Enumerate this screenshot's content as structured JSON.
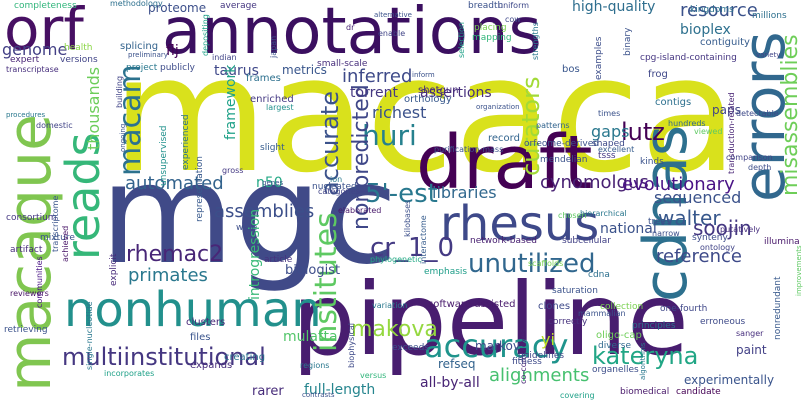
{
  "word_cloud": {
    "words": [
      {
        "text": "macaca",
        "color": "#d9e11c"
      },
      {
        "text": "mgc",
        "color": "#404a88"
      },
      {
        "text": "pipeline",
        "color": "#481d6f"
      },
      {
        "text": "annotations",
        "color": "#3b0f60"
      },
      {
        "text": "macaque",
        "color": "#80c650"
      },
      {
        "text": "draft",
        "color": "#440154"
      },
      {
        "text": "cdnas",
        "color": "#2d708e"
      },
      {
        "text": "errors",
        "color": "#31688e"
      },
      {
        "text": "nonhuman",
        "color": "#22908c"
      },
      {
        "text": "orf",
        "color": "#471063"
      },
      {
        "text": "rhesus",
        "color": "#3e4989"
      },
      {
        "text": "reads",
        "color": "#35b779"
      },
      {
        "text": "accuracy",
        "color": "#1f948c"
      },
      {
        "text": "institutes",
        "color": "#5ec962"
      },
      {
        "text": "multiinstitutional",
        "color": "#453781"
      },
      {
        "text": "kateryna",
        "color": "#21a685"
      },
      {
        "text": "macam",
        "color": "#2c728e"
      },
      {
        "text": "huri",
        "color": "#26818e"
      },
      {
        "text": "5'-est",
        "color": "#29788e"
      },
      {
        "text": "cr_1_0",
        "color": "#443a83"
      },
      {
        "text": "nonpredicted",
        "color": "#3f4788"
      },
      {
        "text": "curators",
        "color": "#a2da37"
      },
      {
        "text": "misassemblies",
        "color": "#6ece58"
      },
      {
        "text": "unutilized",
        "color": "#31678e"
      },
      {
        "text": "accurate",
        "color": "#3b528b"
      },
      {
        "text": "makova",
        "color": "#95d840"
      },
      {
        "text": "walter",
        "color": "#38588c"
      },
      {
        "text": "soojin",
        "color": "#453882"
      },
      {
        "text": "rhemac2",
        "color": "#482677"
      },
      {
        "text": "lutz",
        "color": "#440154"
      },
      {
        "text": "inferred",
        "color": "#3e4a89"
      },
      {
        "text": "resource",
        "color": "#3b528b"
      },
      {
        "text": "cynomolgus",
        "color": "#482173"
      },
      {
        "text": "evolutionary",
        "color": "#4a1486"
      },
      {
        "text": "primates",
        "color": "#2a788e"
      },
      {
        "text": "genome",
        "color": "#423f85"
      },
      {
        "text": "assemblies",
        "color": "#3c4f8a"
      },
      {
        "text": "libraries",
        "color": "#31688e"
      },
      {
        "text": "alignments",
        "color": "#46c06f"
      },
      {
        "text": "reference",
        "color": "#3e4a89"
      },
      {
        "text": "automated",
        "color": "#33638d"
      },
      {
        "text": "thousands",
        "color": "#6ccd5a"
      },
      {
        "text": "taurus",
        "color": "#3f4889"
      },
      {
        "text": "high-quality",
        "color": "#2e6e8e"
      },
      {
        "text": "bioplex",
        "color": "#2d708e"
      },
      {
        "text": "paps",
        "color": "#414487"
      },
      {
        "text": "gaps",
        "color": "#2a788e"
      },
      {
        "text": "richest",
        "color": "#3b528b"
      },
      {
        "text": "sequenced",
        "color": "#3b528b"
      },
      {
        "text": "torrent",
        "color": "#453882"
      },
      {
        "text": "assertions",
        "color": "#472f7d"
      },
      {
        "text": "framework",
        "color": "#1fa188"
      },
      {
        "text": "biologist",
        "color": "#3d4d8a"
      },
      {
        "text": "introgression",
        "color": "#38b977"
      },
      {
        "text": "all-by-all",
        "color": "#482475"
      },
      {
        "text": "full-length",
        "color": "#25858e"
      },
      {
        "text": "mulatta",
        "color": "#52c569"
      },
      {
        "text": "refseq",
        "color": "#33638d"
      },
      {
        "text": "yi",
        "color": "#bddf26"
      },
      {
        "text": "national",
        "color": "#3b528b"
      },
      {
        "text": "markov",
        "color": "#3e4a89"
      },
      {
        "text": "paint",
        "color": "#424086"
      },
      {
        "text": "experimentally",
        "color": "#3a548c"
      },
      {
        "text": "rarer",
        "color": "#472c7a"
      },
      {
        "text": "flj",
        "color": "#440154"
      },
      {
        "text": "proteome",
        "color": "#3c4f8a"
      },
      {
        "text": "metrics",
        "color": "#39568c"
      },
      {
        "text": "n50",
        "color": "#22a884"
      },
      {
        "text": "splicing",
        "color": "#33638d"
      },
      {
        "text": "creating",
        "color": "#2c738e"
      },
      {
        "text": "clusters",
        "color": "#482878"
      },
      {
        "text": "files",
        "color": "#3a548c"
      },
      {
        "text": "expands",
        "color": "#472d7b"
      },
      {
        "text": "enriched",
        "color": "#443983"
      },
      {
        "text": "frames",
        "color": "#2d708e"
      },
      {
        "text": "shotgun",
        "color": "#472a7a"
      },
      {
        "text": "orthology",
        "color": "#38598c"
      },
      {
        "text": "record",
        "color": "#32648e"
      },
      {
        "text": "contigs",
        "color": "#2d708e"
      },
      {
        "text": "bos",
        "color": "#39568c"
      },
      {
        "text": "frog",
        "color": "#3f4788"
      },
      {
        "text": "contiguity",
        "color": "#365c8d"
      },
      {
        "text": "kingdoms",
        "color": "#2c728e"
      },
      {
        "text": "millions",
        "color": "#2d708e"
      },
      {
        "text": "binary",
        "color": "#3b528b"
      },
      {
        "text": "examples",
        "color": "#3d4e8a"
      },
      {
        "text": "cpg-island-containing",
        "color": "#453581"
      },
      {
        "text": "small-scale",
        "color": "#472e7c"
      },
      {
        "text": "mapping",
        "color": "#32b67a"
      },
      {
        "text": "placing",
        "color": "#7ad151"
      },
      {
        "text": "breadth",
        "color": "#3b528b"
      },
      {
        "text": "uniform",
        "color": "#3e4989"
      },
      {
        "text": "cow",
        "color": "#3f4889"
      },
      {
        "text": "methodology",
        "color": "#2d708e"
      },
      {
        "text": "completeness",
        "color": "#31b57b"
      },
      {
        "text": "average",
        "color": "#453781"
      },
      {
        "text": "expert",
        "color": "#482475"
      },
      {
        "text": "health",
        "color": "#8bd646"
      },
      {
        "text": "versions",
        "color": "#414487"
      },
      {
        "text": "transcriptase",
        "color": "#472f7d"
      },
      {
        "text": "project",
        "color": "#2a788e"
      },
      {
        "text": "publicly",
        "color": "#3e4c8a"
      },
      {
        "text": "consortium",
        "color": "#453882"
      },
      {
        "text": "mixture",
        "color": "#3a548c"
      },
      {
        "text": "artifact",
        "color": "#472d7b"
      },
      {
        "text": "reviewers",
        "color": "#471365"
      },
      {
        "text": "communities",
        "color": "#4a1486"
      },
      {
        "text": "retrieving",
        "color": "#3b528b"
      },
      {
        "text": "experienced",
        "color": "#2c728e"
      },
      {
        "text": "representation",
        "color": "#38598c"
      },
      {
        "text": "unsupervised",
        "color": "#21918c"
      },
      {
        "text": "slight",
        "color": "#365c8d"
      },
      {
        "text": "gross",
        "color": "#443983"
      },
      {
        "text": "categories",
        "color": "#414487"
      },
      {
        "text": "wide",
        "color": "#3d4e8a"
      },
      {
        "text": "article",
        "color": "#46327e"
      },
      {
        "text": "achieved",
        "color": "#481467"
      },
      {
        "text": "explicit",
        "color": "#472a7a"
      },
      {
        "text": "transcriptome",
        "color": "#3a548c"
      },
      {
        "text": "nucleated",
        "color": "#3b528b"
      },
      {
        "text": "elaborated",
        "color": "#48186a"
      },
      {
        "text": "kilobases",
        "color": "#3c4f8a"
      },
      {
        "text": "interactome",
        "color": "#365c8d"
      },
      {
        "text": "network-based",
        "color": "#482071"
      },
      {
        "text": "subcellular",
        "color": "#424186"
      },
      {
        "text": "trees",
        "color": "#3b528b"
      },
      {
        "text": "narrow",
        "color": "#3c4f8a"
      },
      {
        "text": "synteny",
        "color": "#3e4c8a"
      },
      {
        "text": "putatively",
        "color": "#472f7d"
      },
      {
        "text": "illumina",
        "color": "#48186a"
      },
      {
        "text": "ontology",
        "color": "#414487"
      },
      {
        "text": "chosen",
        "color": "#5ec962"
      },
      {
        "text": "phylogenetic",
        "color": "#22a884"
      },
      {
        "text": "emphasis",
        "color": "#1f9e89"
      },
      {
        "text": "saturation",
        "color": "#3b528b"
      },
      {
        "text": "variation",
        "color": "#2a788e"
      },
      {
        "text": "software-assisted",
        "color": "#481a6c"
      },
      {
        "text": "clones",
        "color": "#3e4a89"
      },
      {
        "text": "collection",
        "color": "#7ad151"
      },
      {
        "text": "cdna",
        "color": "#2d708e"
      },
      {
        "text": "mammalian",
        "color": "#3b528b"
      },
      {
        "text": "correctly",
        "color": "#46327e"
      },
      {
        "text": "one-fourth",
        "color": "#3f4788"
      },
      {
        "text": "erroneous",
        "color": "#3e4a89"
      },
      {
        "text": "nonredundant",
        "color": "#38598c"
      },
      {
        "text": "hierarchical",
        "color": "#2a788e"
      },
      {
        "text": "biophysical",
        "color": "#3e4a89"
      },
      {
        "text": "co-complexes",
        "color": "#482475"
      },
      {
        "text": "oligo-cap",
        "color": "#6ece58"
      },
      {
        "text": "guidelines",
        "color": "#3f4788"
      },
      {
        "text": "principles",
        "color": "#2d708e"
      },
      {
        "text": "diverse",
        "color": "#31688e"
      },
      {
        "text": "exceeds",
        "color": "#3b528b"
      },
      {
        "text": "fitness",
        "color": "#3e4a89"
      },
      {
        "text": "organelles",
        "color": "#3d4e8a"
      },
      {
        "text": "biomedical",
        "color": "#48186a"
      },
      {
        "text": "candidate",
        "color": "#440154"
      },
      {
        "text": "sanger",
        "color": "#472f7d"
      },
      {
        "text": "covering",
        "color": "#1fa188"
      },
      {
        "text": "versus",
        "color": "#31b57b"
      },
      {
        "text": "regions",
        "color": "#2a788e"
      },
      {
        "text": "incorporates",
        "color": "#1fa188"
      },
      {
        "text": "single-nucleotide",
        "color": "#2a788e"
      },
      {
        "text": "indian",
        "color": "#414487"
      },
      {
        "text": "mendelian",
        "color": "#3b528b"
      },
      {
        "text": "patterns",
        "color": "#32648e"
      },
      {
        "text": "shaped",
        "color": "#3e4a89"
      },
      {
        "text": "tsss",
        "color": "#443983"
      },
      {
        "text": "orfeome-derived",
        "color": "#3b528b"
      },
      {
        "text": "times",
        "color": "#3b528b"
      },
      {
        "text": "excellent",
        "color": "#365c8d"
      },
      {
        "text": "viewed",
        "color": "#5ec962"
      },
      {
        "text": "kinds",
        "color": "#3b528b"
      },
      {
        "text": "transduction-related",
        "color": "#482475"
      },
      {
        "text": "comparison",
        "color": "#414487"
      },
      {
        "text": "depth",
        "color": "#3d4e8a"
      },
      {
        "text": "hundreds",
        "color": "#31688e"
      },
      {
        "text": "detectable",
        "color": "#3e4a89"
      },
      {
        "text": "ion",
        "color": "#2a788e"
      },
      {
        "text": "japan",
        "color": "#3b528b"
      },
      {
        "text": "dr",
        "color": "#482475"
      },
      {
        "text": "enable",
        "color": "#414487"
      },
      {
        "text": "largest",
        "color": "#21918c"
      },
      {
        "text": "organization",
        "color": "#3b528b"
      },
      {
        "text": "purification-mass",
        "color": "#3b528b"
      },
      {
        "text": "domestic",
        "color": "#414487"
      },
      {
        "text": "procedures",
        "color": "#2a788e"
      },
      {
        "text": "preliminary",
        "color": "#3b528b"
      },
      {
        "text": "depositing",
        "color": "#1fa188"
      },
      {
        "text": "building",
        "color": "#414487"
      },
      {
        "text": "ongoing",
        "color": "#3b528b"
      },
      {
        "text": "strengths",
        "color": "#2a788e"
      },
      {
        "text": "alternative",
        "color": "#3b528b"
      },
      {
        "text": "inform",
        "color": "#3b528b"
      },
      {
        "text": "variety",
        "color": "#414487"
      },
      {
        "text": "scaffolds",
        "color": "#7ad151"
      },
      {
        "text": "improvements",
        "color": "#5ec962"
      },
      {
        "text": "algorithms",
        "color": "#2a788e"
      },
      {
        "text": "genes",
        "color": "#3b528b"
      },
      {
        "text": "selection",
        "color": "#1fa188"
      },
      {
        "text": "contrasts",
        "color": "#3b528b"
      }
    ]
  }
}
